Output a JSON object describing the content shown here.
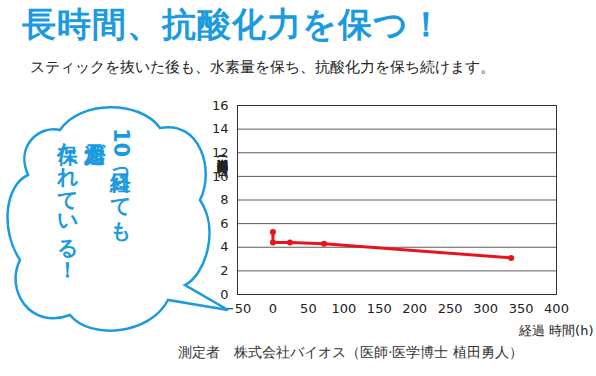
{
  "chart_data": {
    "type": "line",
    "title": "長時間、抗酸化力を保つ！",
    "subtitle": "スティックを抜いた後も、水素量を保ち、抗酸化力を保ち続けます。",
    "annotation": [
      "10日経っても",
      "還元力が",
      "保たれている！"
    ],
    "note": "測定者　株式会社バイオス（医師·医学博士 植田勇人）",
    "x_label": "経過 時間(h)",
    "y_label": "半減期 時間(日)",
    "x": [
      0,
      0,
      24,
      72,
      336
    ],
    "values": [
      5.3,
      4.4,
      4.4,
      4.3,
      3.1
    ],
    "color": "#e8141c",
    "marker": "dot",
    "xlim": [
      -50,
      400
    ],
    "xticks": [
      -50,
      0,
      50,
      100,
      150,
      200,
      250,
      300,
      350,
      400
    ],
    "ylim": [
      0,
      16
    ],
    "yticks": [
      0,
      2,
      4,
      6,
      8,
      10,
      12,
      14,
      16
    ],
    "grid": true
  }
}
